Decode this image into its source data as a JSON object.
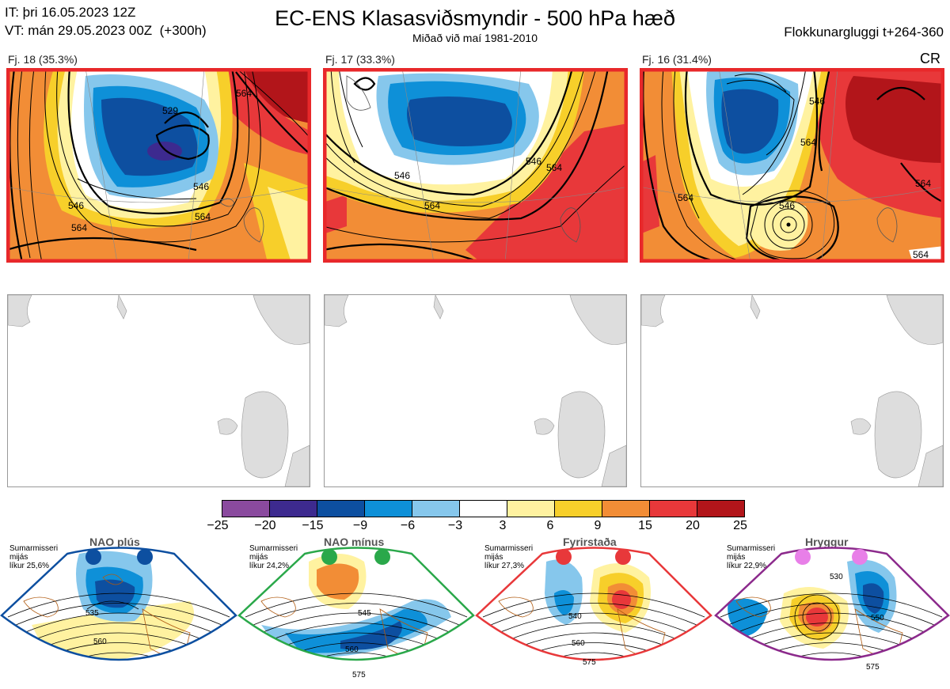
{
  "header": {
    "it_line": "IT: þri 16.05.2023 12Z",
    "vt_line": "VT: mán 29.05.2023 00Z  (+300h)",
    "title": "EC-ENS Klasasviðsmyndir - 500 hPa hæð",
    "subtitle": "Miðað við maí 1981-2010",
    "window": "Flokkunargluggi t+264-360",
    "cr": "CR"
  },
  "panels": [
    {
      "label": "Fj. 18 (35.3%)",
      "contours": [
        "529",
        "546",
        "546",
        "564",
        "564",
        "564"
      ]
    },
    {
      "label": "Fj. 17 (33.3%)",
      "contours": [
        "546",
        "546",
        "564",
        "564"
      ]
    },
    {
      "label": "Fj. 16 (31.4%)",
      "contours": [
        "546",
        "546",
        "564",
        "564",
        "564",
        "564"
      ]
    }
  ],
  "colorbar": {
    "ticks": [
      "−25",
      "−20",
      "−15",
      "−9",
      "−6",
      "−3",
      "3",
      "6",
      "9",
      "15",
      "20",
      "25"
    ],
    "colors": [
      "#8a4a9e",
      "#3d2a8f",
      "#0d4fa0",
      "#0e90d8",
      "#86c7ec",
      "#ffffff",
      "#fff2a0",
      "#f7cf2a",
      "#f28d36",
      "#e8383a",
      "#b2151a"
    ]
  },
  "regimes": [
    {
      "name": "NAO plús",
      "info": [
        "Sumarmisseri",
        "mijás",
        "líkur 25,6%"
      ],
      "color": "#0d4fa0",
      "dot": "#0d4fa0",
      "contours": [
        "535",
        "560"
      ]
    },
    {
      "name": "NAO mínus",
      "info": [
        "Sumarmisseri",
        "mijás",
        "líkur 24,2%"
      ],
      "color": "#2aa84a",
      "dot": "#2aa84a",
      "contours": [
        "545",
        "560",
        "575"
      ]
    },
    {
      "name": "Fyrirstaða",
      "info": [
        "Sumarmisseri",
        "mijás",
        "líkur 27,3%"
      ],
      "color": "#e8383a",
      "dot": "#e8383a",
      "contours": [
        "540",
        "560",
        "575"
      ]
    },
    {
      "name": "Hryggur",
      "info": [
        "Sumarmisseri",
        "mijás",
        "líkur 22,9%"
      ],
      "color": "#8c2a8c",
      "dot": "#e87fe8",
      "contours": [
        "530",
        "550",
        "575"
      ]
    }
  ]
}
